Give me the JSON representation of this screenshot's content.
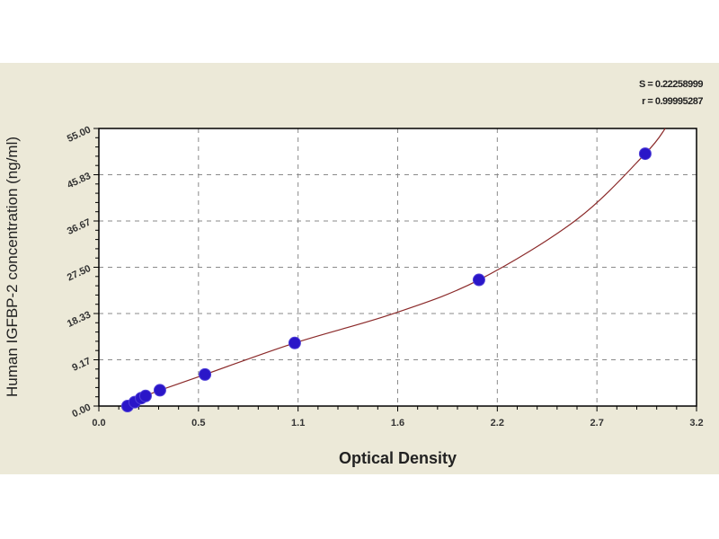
{
  "chart_data": {
    "type": "scatter",
    "title": "",
    "xlabel": "Optical Density",
    "ylabel": "Human IGFBP-2 concentration (ng/ml)",
    "xlim": [
      0,
      3.25
    ],
    "ylim": [
      0,
      55
    ],
    "x_ticks": [
      "0.0",
      "0.5",
      "1.1",
      "1.6",
      "2.2",
      "2.7",
      "3.2"
    ],
    "y_ticks": [
      "0.00",
      "9.17",
      "18.33",
      "27.50",
      "36.67",
      "45.83",
      "55.00"
    ],
    "grid": true,
    "stats": [
      "S = 0.22258999",
      "r = 0.99995287"
    ],
    "points": {
      "x": [
        0.156,
        0.195,
        0.23,
        0.254,
        0.332,
        0.577,
        1.065,
        2.067,
        2.971
      ],
      "y": [
        0,
        0.78,
        1.56,
        2.0,
        3.13,
        6.25,
        12.5,
        25,
        50
      ]
    },
    "curve": {
      "x": [
        0.14,
        0.156,
        0.195,
        0.23,
        0.254,
        0.332,
        0.577,
        1.065,
        1.6,
        2.067,
        2.6,
        2.971,
        3.08
      ],
      "y": [
        0,
        0.2,
        0.78,
        1.56,
        2.0,
        3.13,
        6.25,
        12.5,
        18.3,
        25,
        37,
        50,
        55
      ]
    },
    "colors": {
      "point": "#2a16c8",
      "curve": "#8b2a2a",
      "grid": "#8a8a8a",
      "background": "#ece9d8"
    }
  }
}
